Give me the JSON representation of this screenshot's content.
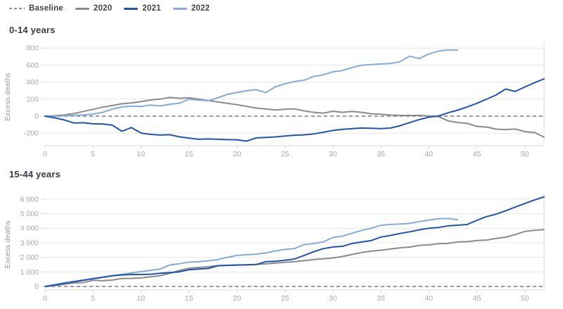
{
  "legend": {
    "items": [
      {
        "label": "Baseline",
        "color": "#8f8f8f",
        "style": "dashed"
      },
      {
        "label": "2020",
        "color": "#8b8b8b",
        "style": "solid"
      },
      {
        "label": "2021",
        "color": "#2253ae",
        "style": "solid"
      },
      {
        "label": "2022",
        "color": "#83abdb",
        "style": "solid"
      }
    ]
  },
  "chart_data": [
    {
      "type": "line",
      "title": "0-14 years",
      "ylabel": "Excess deaths",
      "x_unit": "week",
      "xlim": [
        0,
        52
      ],
      "ylim": [
        -350,
        830
      ],
      "grid": true,
      "legend_position": "top-left-shared",
      "x_ticks": [
        0,
        5,
        10,
        15,
        20,
        25,
        30,
        35,
        40,
        45,
        50
      ],
      "y_ticks": [
        {
          "value": -200,
          "label": "-200"
        },
        {
          "value": 0,
          "label": "0"
        },
        {
          "value": 200,
          "label": "200"
        },
        {
          "value": 400,
          "label": "400"
        },
        {
          "value": 600,
          "label": "600"
        },
        {
          "value": 800,
          "label": "800"
        }
      ],
      "baseline": {
        "value": 0,
        "style": "dashed",
        "color": "#8f8f8f"
      },
      "series": [
        {
          "name": "2020",
          "color": "#8b8b8b",
          "x_start": 0,
          "values": [
            0,
            5,
            15,
            30,
            55,
            80,
            105,
            125,
            145,
            155,
            170,
            190,
            200,
            220,
            210,
            215,
            200,
            183,
            168,
            150,
            135,
            115,
            95,
            85,
            72,
            80,
            85,
            62,
            45,
            35,
            58,
            45,
            55,
            45,
            28,
            22,
            12,
            8,
            8,
            8,
            2,
            -5,
            -55,
            -75,
            -85,
            -120,
            -128,
            -152,
            -158,
            -150,
            -182,
            -192,
            -245
          ]
        },
        {
          "name": "2021",
          "color": "#2253ae",
          "x_start": 0,
          "values": [
            0,
            -20,
            -45,
            -80,
            -78,
            -90,
            -92,
            -105,
            -178,
            -135,
            -198,
            -214,
            -222,
            -218,
            -243,
            -258,
            -272,
            -268,
            -272,
            -276,
            -278,
            -293,
            -255,
            -250,
            -244,
            -234,
            -224,
            -220,
            -208,
            -190,
            -168,
            -155,
            -146,
            -140,
            -142,
            -146,
            -140,
            -112,
            -76,
            -40,
            -12,
            2,
            40,
            70,
            108,
            150,
            198,
            248,
            318,
            290,
            342,
            392,
            438
          ]
        },
        {
          "name": "2022",
          "color": "#83abdb",
          "x_start": 0,
          "values": [
            0,
            0,
            4,
            8,
            14,
            24,
            45,
            82,
            108,
            118,
            112,
            130,
            120,
            140,
            152,
            198,
            188,
            180,
            215,
            255,
            278,
            298,
            310,
            276,
            345,
            380,
            405,
            422,
            465,
            486,
            520,
            536,
            570,
            598,
            606,
            612,
            618,
            640,
            704,
            676,
            730,
            764,
            778,
            774
          ]
        }
      ]
    },
    {
      "type": "line",
      "title": "15-44 years",
      "ylabel": "Excess deaths",
      "x_unit": "week",
      "xlim": [
        0,
        52
      ],
      "ylim": [
        -250,
        6400
      ],
      "grid": true,
      "legend_position": "top-left-shared",
      "x_ticks": [
        0,
        5,
        10,
        15,
        20,
        25,
        30,
        35,
        40,
        45,
        50
      ],
      "y_ticks": [
        {
          "value": 0,
          "label": "0"
        },
        {
          "value": 1000,
          "label": "1 000"
        },
        {
          "value": 2000,
          "label": "2 000"
        },
        {
          "value": 3000,
          "label": "3 000"
        },
        {
          "value": 4000,
          "label": "4 000"
        },
        {
          "value": 5000,
          "label": "5 000"
        },
        {
          "value": 6000,
          "label": "6 000"
        }
      ],
      "baseline": {
        "value": 0,
        "style": "dashed",
        "color": "#8f8f8f"
      },
      "series": [
        {
          "name": "2020",
          "color": "#8b8b8b",
          "x_start": 0,
          "values": [
            0,
            70,
            160,
            240,
            265,
            420,
            390,
            440,
            550,
            555,
            585,
            660,
            745,
            905,
            1100,
            1250,
            1305,
            1355,
            1430,
            1450,
            1470,
            1485,
            1505,
            1550,
            1605,
            1650,
            1700,
            1780,
            1850,
            1900,
            1955,
            2060,
            2200,
            2330,
            2430,
            2490,
            2570,
            2650,
            2705,
            2820,
            2855,
            2930,
            2955,
            3055,
            3080,
            3150,
            3185,
            3300,
            3385,
            3560,
            3780,
            3855,
            3905
          ]
        },
        {
          "name": "2021",
          "color": "#2253ae",
          "x_start": 0,
          "values": [
            0,
            100,
            210,
            325,
            420,
            530,
            630,
            730,
            790,
            820,
            822,
            840,
            905,
            950,
            1005,
            1150,
            1200,
            1235,
            1420,
            1450,
            1475,
            1485,
            1505,
            1700,
            1730,
            1800,
            1885,
            2130,
            2380,
            2600,
            2705,
            2760,
            2950,
            3055,
            3155,
            3390,
            3500,
            3640,
            3755,
            3890,
            4000,
            4050,
            4160,
            4205,
            4255,
            4540,
            4790,
            4960,
            5200,
            5450,
            5690,
            5930,
            6150
          ]
        },
        {
          "name": "2022",
          "color": "#83abdb",
          "x_start": 0,
          "values": [
            0,
            130,
            260,
            345,
            450,
            550,
            645,
            740,
            825,
            930,
            1020,
            1110,
            1200,
            1480,
            1560,
            1670,
            1705,
            1760,
            1850,
            2000,
            2130,
            2180,
            2215,
            2300,
            2440,
            2540,
            2605,
            2870,
            2950,
            3060,
            3360,
            3450,
            3650,
            3850,
            4000,
            4200,
            4255,
            4285,
            4330,
            4455,
            4560,
            4650,
            4665,
            4580
          ]
        }
      ]
    }
  ]
}
